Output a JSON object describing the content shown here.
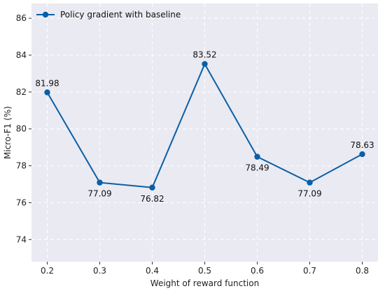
{
  "chart_data": {
    "type": "line",
    "title": "",
    "xlabel": "Weight of reward function",
    "ylabel": "Micro-F1 (%)",
    "x": [
      0.2,
      0.3,
      0.4,
      0.5,
      0.6,
      0.7,
      0.8
    ],
    "x_tick_labels": [
      "0.2",
      "0.3",
      "0.4",
      "0.5",
      "0.6",
      "0.7",
      "0.8"
    ],
    "y_ticks": [
      74,
      76,
      78,
      80,
      82,
      84,
      86
    ],
    "y_tick_labels": [
      "74",
      "76",
      "78",
      "80",
      "82",
      "84",
      "86"
    ],
    "xlim": [
      0.17,
      0.83
    ],
    "ylim": [
      72.8,
      86.8
    ],
    "series": [
      {
        "name": "Policy gradient with baseline",
        "values": [
          81.98,
          77.09,
          76.82,
          83.52,
          78.49,
          77.09,
          78.63
        ],
        "data_labels": [
          "81.98",
          "77.09",
          "76.82",
          "83.52",
          "78.49",
          "77.09",
          "78.63"
        ],
        "label_positions": [
          "above",
          "below",
          "below",
          "above",
          "below",
          "below",
          "above"
        ],
        "color": "#0b5fa5",
        "marker": "circle"
      }
    ],
    "legend": {
      "position": "top-left"
    },
    "grid": true,
    "grid_style": "dashed",
    "background_color": "#eaeaf2",
    "grid_color": "#ffffff"
  }
}
